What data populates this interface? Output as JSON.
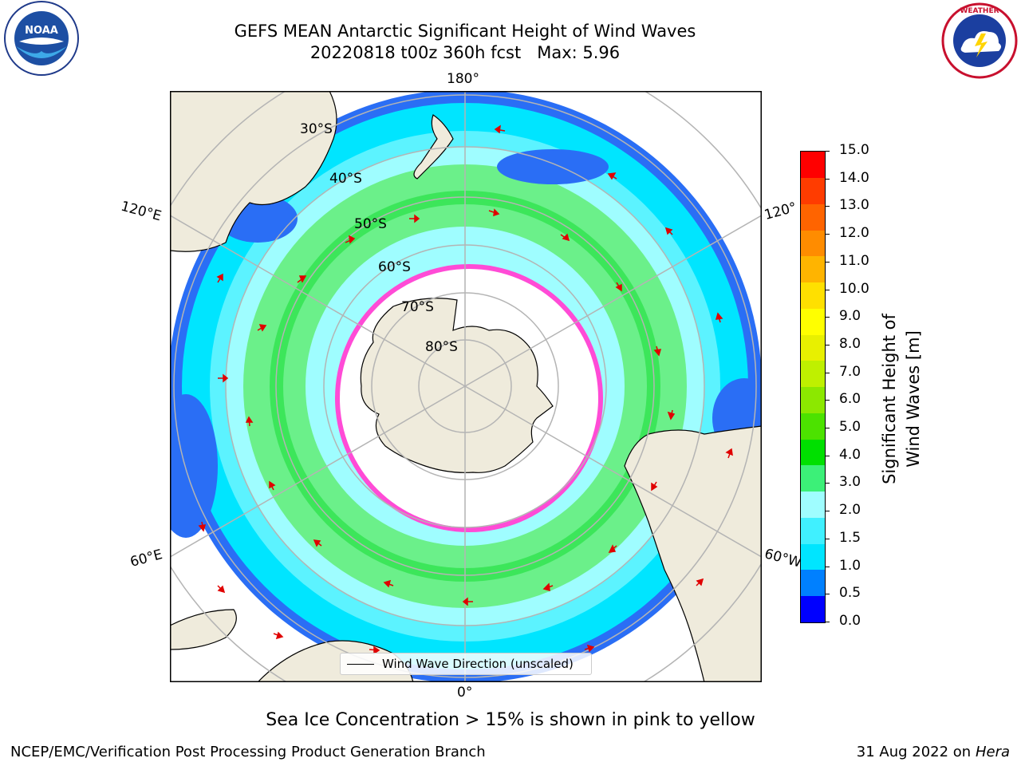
{
  "title": {
    "line1": "GEFS MEAN Antarctic Significant Height of Wind Waves",
    "line2": "20220818 t00z 360h fcst   Max: 5.96"
  },
  "logos": {
    "left": "NOAA",
    "right": "NATIONAL WEATHER SERVICE"
  },
  "map": {
    "longitude_labels": [
      "180°",
      "120°E",
      "120°",
      "60°E",
      "60°W",
      "0°"
    ],
    "latitude_labels": [
      "30°S",
      "40°S",
      "50°S",
      "60°S",
      "70°S",
      "80°S"
    ],
    "legend": "Wind Wave Direction (unscaled)"
  },
  "colorbar": {
    "label": "Significant Height of Wind Waves [m]",
    "ticks": [
      "15.0",
      "14.0",
      "13.0",
      "12.0",
      "11.0",
      "10.0",
      "9.0",
      "8.0",
      "7.0",
      "6.0",
      "5.0",
      "4.0",
      "3.0",
      "2.0",
      "1.5",
      "1.0",
      "0.5",
      "0.0"
    ],
    "colors": [
      "#0000ff",
      "#0080ff",
      "#00e5ff",
      "#40f0ff",
      "#9ffdff",
      "#3cf078",
      "#00e000",
      "#4ce200",
      "#8ce800",
      "#bff000",
      "#e8f000",
      "#ffff00",
      "#ffe000",
      "#ffb400",
      "#ff8c00",
      "#ff6400",
      "#ff3c00",
      "#ff0000"
    ]
  },
  "footer": {
    "note": "Sea Ice Concentration > 15% is shown in pink to yellow",
    "credit_left": "NCEP/EMC/Verification Post Processing Product Generation Branch",
    "date": "31 Aug 2022 on",
    "host": "Hera"
  }
}
